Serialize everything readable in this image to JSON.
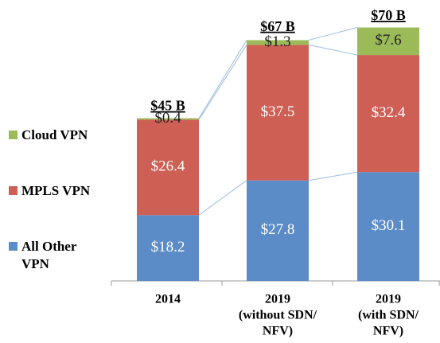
{
  "chart_data": {
    "type": "stacked-bar",
    "categories": [
      [
        "2014"
      ],
      [
        "2019",
        "(without SDN/",
        "NFV)"
      ],
      [
        "2019",
        "(with SDN/",
        "NFV)"
      ]
    ],
    "series": [
      {
        "name": "All Other VPN",
        "color": "#5b8cc8",
        "values": [
          18.2,
          27.8,
          30.1
        ],
        "value_labels": [
          "$18.2",
          "$27.8",
          "$30.1"
        ]
      },
      {
        "name": "MPLS VPN",
        "color": "#cd5f55",
        "values": [
          26.4,
          37.5,
          32.4
        ],
        "value_labels": [
          "$26.4",
          "$37.5",
          "$32.4"
        ]
      },
      {
        "name": "Cloud VPN",
        "color": "#9bbb59",
        "values": [
          0.4,
          1.3,
          7.6
        ],
        "value_labels": [
          "$0.4",
          "$1.3",
          "$7.6"
        ]
      }
    ],
    "totals": {
      "values": [
        45,
        67,
        70
      ],
      "value_labels": [
        "$45 B",
        "$67 B",
        "$70 B"
      ]
    },
    "ylim": [
      0,
      70
    ]
  }
}
